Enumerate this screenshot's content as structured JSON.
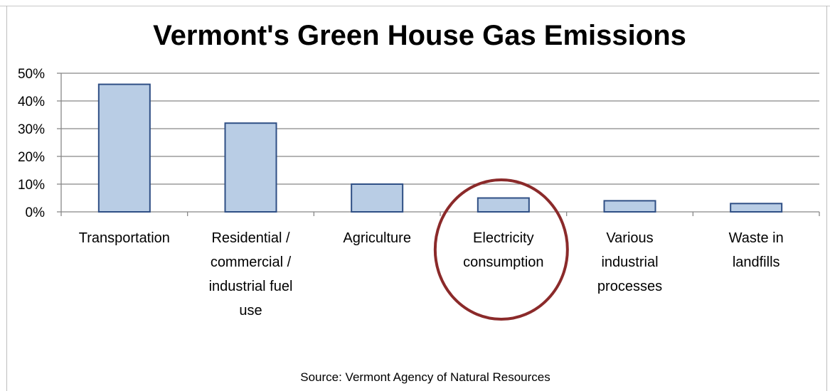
{
  "chart_data": {
    "type": "bar",
    "title": "Vermont's Green House Gas Emissions",
    "categories": [
      [
        "Transportation"
      ],
      [
        "Residential /",
        "commercial /",
        "industrial fuel",
        "use"
      ],
      [
        "Agriculture"
      ],
      [
        "Electricity",
        "consumption"
      ],
      [
        "Various",
        "industrial",
        "processes"
      ],
      [
        "Waste in",
        "landfills"
      ]
    ],
    "values": [
      46,
      32,
      10,
      5,
      4,
      3
    ],
    "value_unit": "%",
    "ylim": [
      0,
      50
    ],
    "yticks": [
      "0%",
      "10%",
      "20%",
      "30%",
      "40%",
      "50%"
    ],
    "yticks_values": [
      0,
      10,
      20,
      30,
      40,
      50
    ],
    "xlabel": "",
    "ylabel": "",
    "grid": true,
    "highlighted_category": "Electricity consumption",
    "source": "Source: Vermont Agency of Natural Resources",
    "colors": {
      "bar_fill": "#b9cde5",
      "bar_stroke": "#2f4f85",
      "grid": "#888888",
      "highlight_circle": "#8b2a2a"
    }
  }
}
